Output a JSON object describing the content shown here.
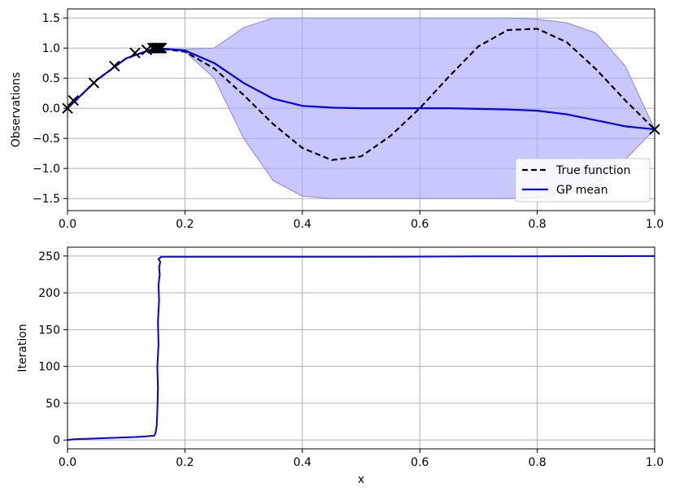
{
  "chart_data": [
    {
      "type": "line",
      "title": "",
      "xlabel": "",
      "ylabel": "Observations",
      "xlim": [
        0.0,
        1.0
      ],
      "ylim": [
        -1.7,
        1.65
      ],
      "grid": true,
      "legend_position": "lower-right",
      "x_ticks": [
        0.0,
        0.2,
        0.4,
        0.6,
        0.8,
        1.0
      ],
      "x_tick_labels": [
        "0.0",
        "0.2",
        "0.4",
        "0.6",
        "0.8",
        "1.0"
      ],
      "y_ticks": [
        -1.5,
        -1.0,
        -0.5,
        0.0,
        0.5,
        1.0,
        1.5
      ],
      "y_tick_labels": [
        "−1.5",
        "−1.0",
        "−0.5",
        "0.0",
        "0.5",
        "1.0",
        "1.5"
      ],
      "colors": {
        "true_function": "#000000",
        "gp_mean": "#0000ee",
        "confidence_band": "#aaaaff",
        "observations": "#000000"
      },
      "series": [
        {
          "name": "True function",
          "style": "dashed",
          "x": [
            0.0,
            0.05,
            0.1,
            0.15,
            0.2,
            0.25,
            0.3,
            0.35,
            0.4,
            0.45,
            0.5,
            0.55,
            0.6,
            0.65,
            0.7,
            0.75,
            0.8,
            0.85,
            0.9,
            0.95,
            1.0
          ],
          "y": [
            0.0,
            0.47,
            0.83,
            1.0,
            0.94,
            0.66,
            0.22,
            -0.26,
            -0.66,
            -0.86,
            -0.8,
            -0.46,
            0.0,
            0.53,
            1.03,
            1.3,
            1.32,
            1.1,
            0.65,
            0.13,
            -0.35
          ]
        },
        {
          "name": "GP mean",
          "style": "solid",
          "x": [
            0.0,
            0.05,
            0.1,
            0.15,
            0.2,
            0.25,
            0.3,
            0.35,
            0.4,
            0.45,
            0.5,
            0.55,
            0.6,
            0.65,
            0.7,
            0.75,
            0.8,
            0.85,
            0.9,
            0.95,
            1.0
          ],
          "y": [
            0.0,
            0.47,
            0.83,
            1.0,
            0.96,
            0.75,
            0.42,
            0.16,
            0.04,
            0.01,
            0.0,
            0.0,
            0.0,
            0.0,
            -0.01,
            -0.02,
            -0.04,
            -0.1,
            -0.2,
            -0.3,
            -0.35
          ]
        }
      ],
      "confidence_band": {
        "x": [
          0.0,
          0.05,
          0.1,
          0.15,
          0.2,
          0.25,
          0.3,
          0.35,
          0.4,
          0.45,
          0.5,
          0.55,
          0.6,
          0.65,
          0.7,
          0.75,
          0.8,
          0.85,
          0.9,
          0.95,
          1.0
        ],
        "lower": [
          0.0,
          0.47,
          0.83,
          1.0,
          0.94,
          0.5,
          -0.5,
          -1.2,
          -1.46,
          -1.5,
          -1.5,
          -1.5,
          -1.5,
          -1.5,
          -1.5,
          -1.5,
          -1.48,
          -1.42,
          -1.25,
          -0.85,
          -0.35
        ],
        "upper": [
          0.0,
          0.47,
          0.83,
          1.0,
          0.98,
          1.0,
          1.34,
          1.5,
          1.5,
          1.5,
          1.5,
          1.5,
          1.5,
          1.5,
          1.5,
          1.5,
          1.48,
          1.42,
          1.25,
          0.7,
          -0.35
        ]
      },
      "observations": {
        "marker": "x",
        "x": [
          0.0,
          0.01,
          0.045,
          0.08,
          0.115,
          0.135,
          0.145,
          0.148,
          0.15,
          0.152,
          0.154,
          0.156,
          0.158,
          0.16,
          1.0
        ],
        "y": [
          0.0,
          0.13,
          0.42,
          0.7,
          0.92,
          0.97,
          1.0,
          1.0,
          1.0,
          1.0,
          1.0,
          1.0,
          1.0,
          1.0,
          -0.35
        ]
      }
    },
    {
      "type": "line",
      "title": "",
      "xlabel": "x",
      "ylabel": "Iteration",
      "xlim": [
        0.0,
        1.0
      ],
      "ylim": [
        -12,
        262
      ],
      "grid": true,
      "x_ticks": [
        0.0,
        0.2,
        0.4,
        0.6,
        0.8,
        1.0
      ],
      "x_tick_labels": [
        "0.0",
        "0.2",
        "0.4",
        "0.6",
        "0.8",
        "1.0"
      ],
      "y_ticks": [
        0,
        50,
        100,
        150,
        200,
        250
      ],
      "y_tick_labels": [
        "0",
        "50",
        "100",
        "150",
        "200",
        "250"
      ],
      "colors": {
        "trace": "#0000ee"
      },
      "series": [
        {
          "style": "solid",
          "x": [
            0.0,
            0.01,
            0.045,
            0.08,
            0.115,
            0.135,
            0.148,
            0.15,
            0.152,
            0.153,
            0.154,
            0.153,
            0.155,
            0.154,
            0.156,
            0.155,
            0.157,
            0.156,
            0.158,
            0.155,
            0.16,
            0.3,
            0.5,
            0.7,
            0.9,
            1.0
          ],
          "y": [
            0,
            1,
            2,
            3,
            4,
            5,
            6,
            10,
            20,
            40,
            70,
            100,
            130,
            160,
            190,
            210,
            225,
            235,
            242,
            246,
            249,
            249,
            249,
            249.5,
            249.8,
            250
          ]
        }
      ]
    }
  ]
}
